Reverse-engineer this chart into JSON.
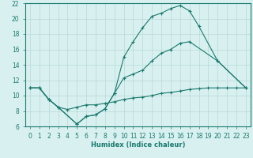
{
  "title": "",
  "xlabel": "Humidex (Indice chaleur)",
  "bg_color": "#d8f0f0",
  "grid_color": "#b8d8d8",
  "line_color": "#1a7a6e",
  "xlim": [
    -0.5,
    23.5
  ],
  "ylim": [
    6,
    22
  ],
  "xticks": [
    0,
    1,
    2,
    3,
    4,
    5,
    6,
    7,
    8,
    9,
    10,
    11,
    12,
    13,
    14,
    15,
    16,
    17,
    18,
    19,
    20,
    21,
    22,
    23
  ],
  "yticks": [
    6,
    8,
    10,
    12,
    14,
    16,
    18,
    20,
    22
  ],
  "line1_x": [
    0,
    1,
    2,
    3,
    5,
    6,
    7,
    8,
    9,
    10,
    11,
    12,
    13,
    14,
    15,
    16,
    17,
    18,
    20,
    23
  ],
  "line1_y": [
    11.0,
    11.0,
    9.5,
    8.5,
    6.3,
    7.3,
    7.5,
    8.3,
    10.3,
    15.0,
    17.0,
    18.8,
    20.3,
    20.7,
    21.3,
    21.7,
    21.0,
    19.0,
    14.5,
    11.0
  ],
  "line2_x": [
    0,
    1,
    2,
    3,
    5,
    6,
    7,
    8,
    9,
    10,
    11,
    12,
    13,
    14,
    15,
    16,
    17,
    20,
    23
  ],
  "line2_y": [
    11.0,
    11.0,
    9.5,
    8.5,
    6.3,
    7.3,
    7.5,
    8.3,
    10.3,
    12.3,
    12.8,
    13.3,
    14.5,
    15.5,
    16.0,
    16.8,
    17.0,
    14.5,
    11.0
  ],
  "line3_x": [
    0,
    1,
    2,
    3,
    4,
    5,
    6,
    7,
    8,
    9,
    10,
    11,
    12,
    13,
    14,
    15,
    16,
    17,
    18,
    19,
    20,
    21,
    22,
    23
  ],
  "line3_y": [
    11.0,
    11.0,
    9.5,
    8.5,
    8.2,
    8.5,
    8.8,
    8.8,
    9.0,
    9.2,
    9.5,
    9.7,
    9.8,
    10.0,
    10.3,
    10.4,
    10.6,
    10.8,
    10.9,
    11.0,
    11.0,
    11.0,
    11.0,
    11.0
  ]
}
